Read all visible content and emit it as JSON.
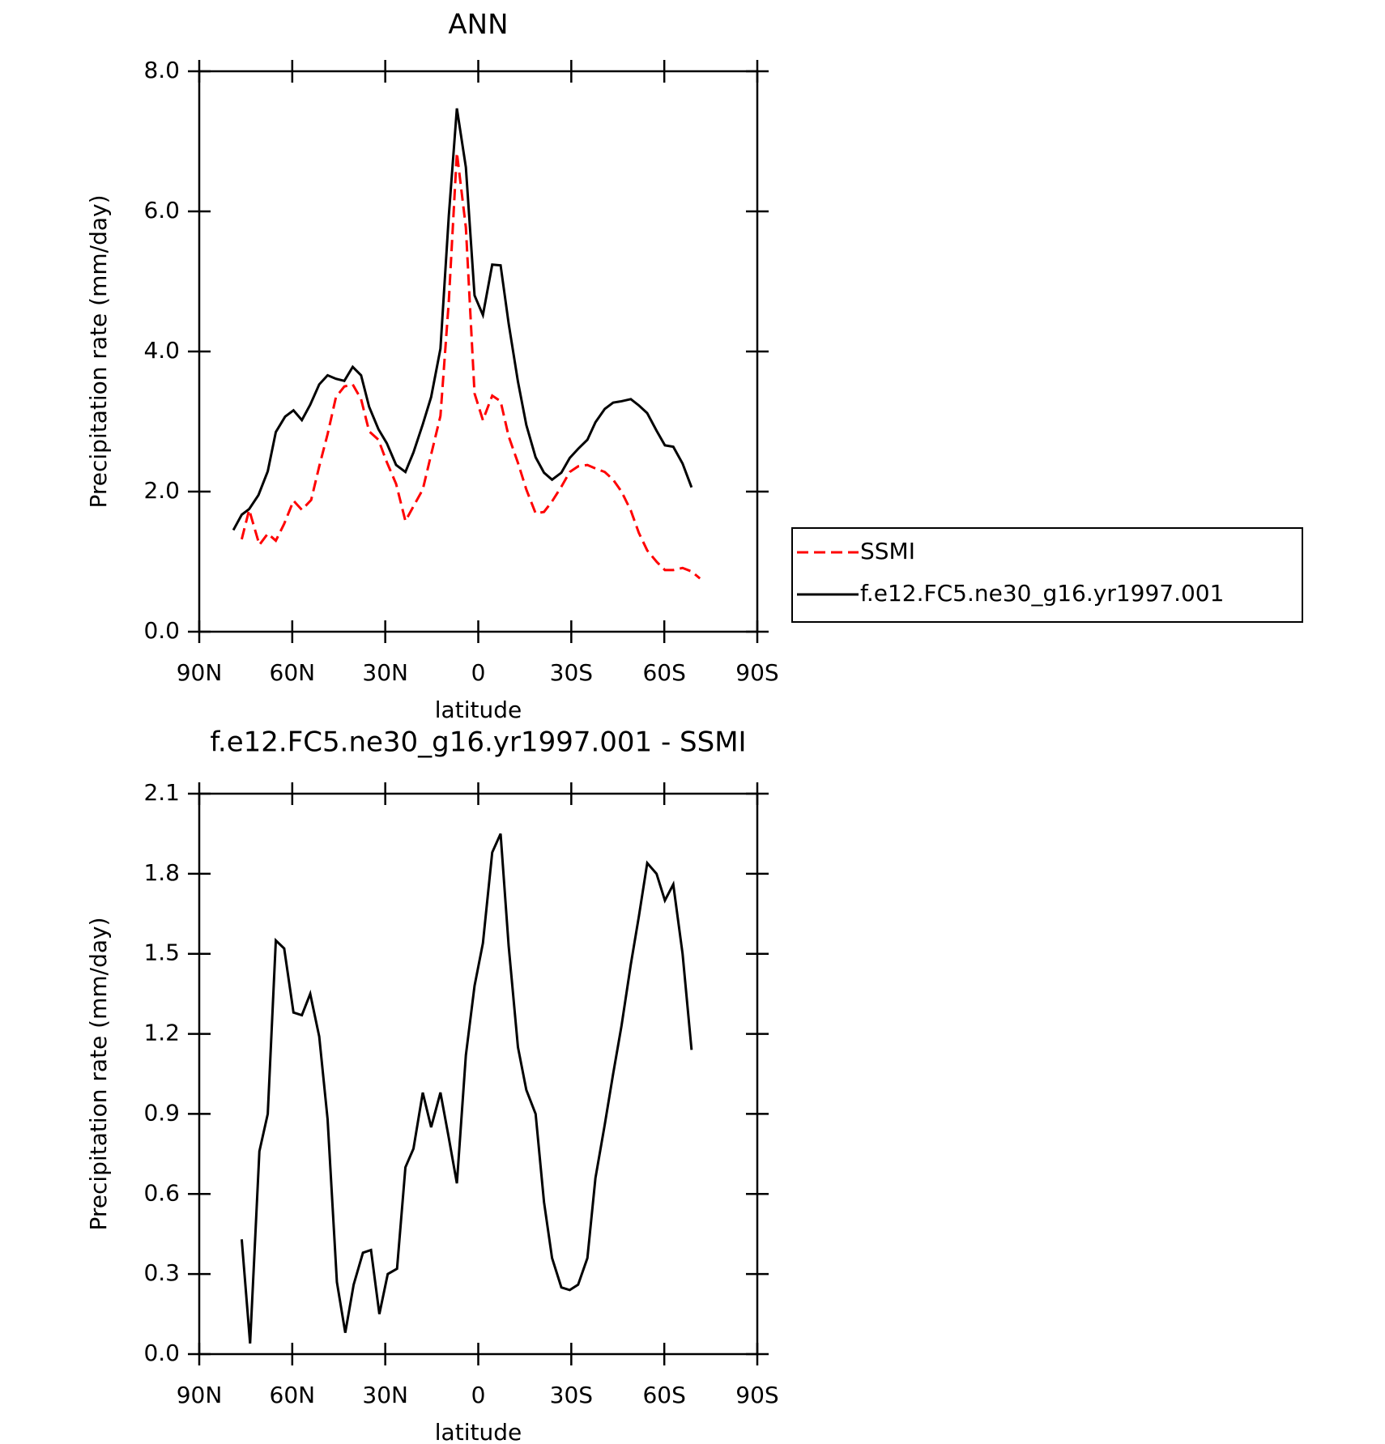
{
  "chart_data": [
    {
      "type": "line",
      "title": "ANN",
      "xlabel": "latitude",
      "ylabel": "Precipitation rate (mm/day)",
      "xlim": [
        90,
        -90
      ],
      "xticks": [
        {
          "value": 90,
          "label": "90N"
        },
        {
          "value": 60,
          "label": "60N"
        },
        {
          "value": 30,
          "label": "30N"
        },
        0,
        {
          "value": -30,
          "label": "30S"
        },
        {
          "value": -60,
          "label": "60S"
        },
        {
          "value": -90,
          "label": "90S"
        }
      ],
      "ylim": [
        0,
        8
      ],
      "yticks": [
        {
          "value": 0,
          "label": "0.0"
        },
        {
          "value": 2,
          "label": "2.0"
        },
        {
          "value": 4,
          "label": "4.0"
        },
        {
          "value": 6,
          "label": "6.0"
        },
        {
          "value": 8,
          "label": "8.0"
        }
      ],
      "legend": "right",
      "series": [
        {
          "name": "SSMI",
          "color": "#ff0000",
          "dash": true,
          "x": [
            76.3,
            73.9,
            70.6,
            67.9,
            65.3,
            62.6,
            59.6,
            56.9,
            53.9,
            51.3,
            48.6,
            45.9,
            43.2,
            40.5,
            37.8,
            35.2,
            32.2,
            29.5,
            26.5,
            23.5,
            20.9,
            17.9,
            15.2,
            12.2,
            9.5,
            6.9,
            4.0,
            1.2,
            -1.5,
            -4.5,
            -7.2,
            -9.8,
            -12.8,
            -15.5,
            -18.5,
            -21.2,
            -23.8,
            -26.8,
            -29.5,
            -32.2,
            -35.2,
            -37.8,
            -40.8,
            -43.5,
            -46.2,
            -49.2,
            -51.8,
            -54.5,
            -57.5,
            -60.2,
            -62.9,
            -65.9,
            -68.8,
            -71.5
          ],
          "values": [
            1.32,
            1.74,
            1.24,
            1.4,
            1.3,
            1.54,
            1.87,
            1.74,
            1.88,
            2.36,
            2.82,
            3.35,
            3.5,
            3.53,
            3.32,
            2.86,
            2.74,
            2.42,
            2.11,
            1.58,
            1.79,
            2.03,
            2.53,
            3.08,
            4.72,
            6.84,
            5.77,
            3.4,
            3.02,
            3.37,
            3.29,
            2.79,
            2.41,
            2.03,
            1.69,
            1.71,
            1.86,
            2.07,
            2.28,
            2.36,
            2.38,
            2.33,
            2.28,
            2.17,
            2.0,
            1.73,
            1.41,
            1.16,
            1.0,
            0.88,
            0.88,
            0.91,
            0.86,
            0.76
          ]
        },
        {
          "name": "f.e12.FC5.ne30_g16.yr1997.001",
          "color": "#000000",
          "dash": false,
          "x": [
            79.0,
            76.3,
            73.9,
            70.9,
            67.9,
            65.3,
            62.3,
            59.6,
            56.9,
            54.2,
            51.3,
            48.6,
            45.9,
            43.2,
            40.5,
            37.8,
            35.2,
            32.2,
            29.5,
            26.5,
            23.5,
            20.9,
            17.9,
            15.2,
            12.2,
            9.5,
            6.9,
            4.0,
            1.2,
            -1.5,
            -4.5,
            -7.2,
            -9.8,
            -12.8,
            -15.5,
            -18.5,
            -21.2,
            -23.8,
            -26.8,
            -29.5,
            -32.2,
            -35.2,
            -37.8,
            -40.8,
            -43.5,
            -46.2,
            -49.2,
            -51.8,
            -54.5,
            -57.5,
            -60.2,
            -62.9,
            -65.9,
            -68.8
          ],
          "values": [
            1.45,
            1.67,
            1.75,
            1.95,
            2.29,
            2.85,
            3.07,
            3.16,
            3.02,
            3.24,
            3.53,
            3.66,
            3.61,
            3.58,
            3.78,
            3.66,
            3.21,
            2.89,
            2.69,
            2.38,
            2.28,
            2.56,
            2.96,
            3.35,
            4.04,
            5.94,
            7.47,
            6.63,
            4.8,
            4.52,
            5.24,
            5.23,
            4.4,
            3.57,
            2.95,
            2.49,
            2.27,
            2.17,
            2.27,
            2.48,
            2.61,
            2.74,
            2.99,
            3.18,
            3.27,
            3.29,
            3.32,
            3.23,
            3.12,
            2.87,
            2.66,
            2.64,
            2.4,
            2.06
          ]
        }
      ]
    },
    {
      "type": "line",
      "title": "f.e12.FC5.ne30_g16.yr1997.001 - SSMI",
      "xlabel": "latitude",
      "ylabel": "Precipitation rate (mm/day)",
      "xlim": [
        90,
        -90
      ],
      "xticks": [
        {
          "value": 90,
          "label": "90N"
        },
        {
          "value": 60,
          "label": "60N"
        },
        {
          "value": 30,
          "label": "30N"
        },
        0,
        {
          "value": -30,
          "label": "30S"
        },
        {
          "value": -60,
          "label": "60S"
        },
        {
          "value": -90,
          "label": "90S"
        }
      ],
      "ylim": [
        0,
        2.1
      ],
      "yticks": [
        {
          "value": 0,
          "label": "0.0"
        },
        0.3,
        0.6,
        0.9,
        1.2,
        1.5,
        1.8,
        2.1
      ],
      "series": [
        {
          "color": "#000000",
          "dash": false,
          "x": [
            76.3,
            73.6,
            70.6,
            67.9,
            65.3,
            62.6,
            59.6,
            56.9,
            54.2,
            51.3,
            48.6,
            45.6,
            42.9,
            40.2,
            37.2,
            34.6,
            31.9,
            29.2,
            26.2,
            23.5,
            20.9,
            17.9,
            15.2,
            12.2,
            9.5,
            6.9,
            4.0,
            1.2,
            -1.5,
            -4.5,
            -7.2,
            -9.8,
            -12.8,
            -15.5,
            -18.5,
            -21.2,
            -23.8,
            -26.8,
            -29.5,
            -32.2,
            -35.2,
            -37.8,
            -40.8,
            -43.5,
            -46.2,
            -49.2,
            -51.8,
            -54.5,
            -57.5,
            -60.2,
            -62.9,
            -65.9,
            -68.8
          ],
          "values": [
            0.43,
            0.04,
            0.76,
            0.9,
            1.55,
            1.52,
            1.28,
            1.27,
            1.35,
            1.19,
            0.88,
            0.27,
            0.08,
            0.26,
            0.38,
            0.39,
            0.15,
            0.3,
            0.32,
            0.7,
            0.77,
            0.98,
            0.85,
            0.98,
            0.81,
            0.64,
            1.12,
            1.38,
            1.54,
            1.88,
            1.95,
            1.53,
            1.15,
            0.99,
            0.9,
            0.57,
            0.36,
            0.25,
            0.24,
            0.26,
            0.36,
            0.66,
            0.86,
            1.05,
            1.23,
            1.46,
            1.64,
            1.84,
            1.8,
            1.7,
            1.76,
            1.5,
            1.14
          ]
        }
      ]
    }
  ]
}
